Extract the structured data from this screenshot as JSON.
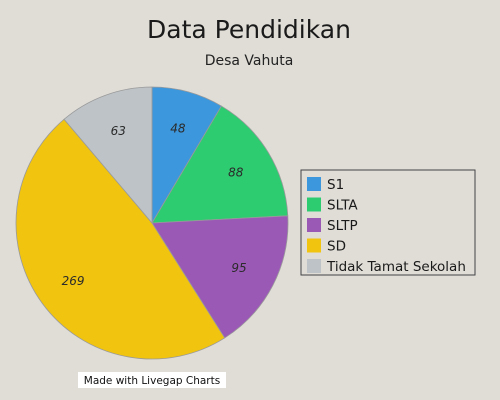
{
  "chart_data": {
    "type": "pie",
    "title": "Data Pendidikan",
    "subtitle": "Desa Vahuta",
    "categories": [
      "S1",
      "SLTA",
      "SLTP",
      "SD",
      "Tidak Tamat Sekolah"
    ],
    "values": [
      48,
      88,
      95,
      269,
      63
    ],
    "colors": [
      "#3d97dc",
      "#2ecc71",
      "#9b59b6",
      "#f1c40f",
      "#bdc3c7"
    ],
    "legend_position": "right",
    "start_angle": "top, clockwise"
  },
  "credit": "Made with Livegap Charts"
}
